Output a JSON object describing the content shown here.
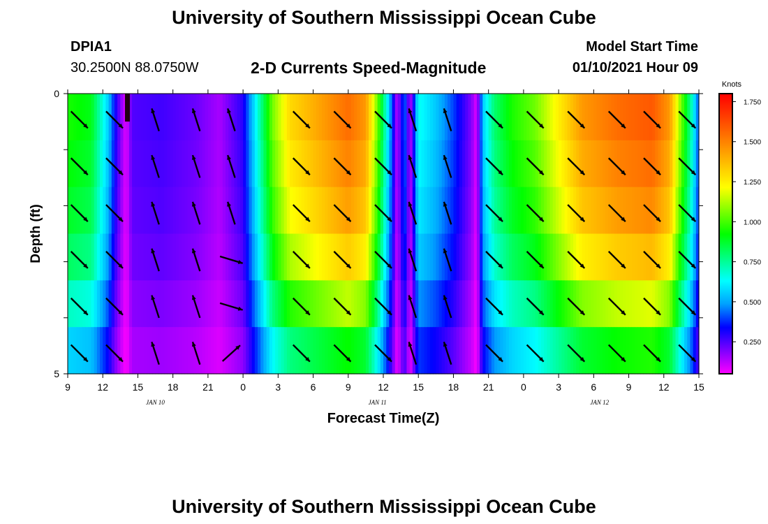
{
  "header": {
    "title": "University of Southern Mississippi Ocean Cube",
    "station": "DPIA1",
    "coords": "30.2500N 88.0750W",
    "chart_title": "2-D Currents Speed-Magnitude",
    "model_start_label": "Model Start Time",
    "model_start_value": "01/10/2021 Hour 09"
  },
  "footer": {
    "title": "University of Southern Mississippi Ocean Cube"
  },
  "chart_data": {
    "type": "heatmap",
    "title": "2-D Currents Speed-Magnitude",
    "xlabel": "Forecast Time(Z)",
    "ylabel": "Depth (ft)",
    "x_range_hours": [
      0,
      54
    ],
    "y_range": [
      0,
      5
    ],
    "x_tick_labels": [
      "9",
      "12",
      "15",
      "18",
      "21",
      "0",
      "3",
      "6",
      "9",
      "12",
      "15",
      "18",
      "21",
      "0",
      "3",
      "6",
      "9",
      "12",
      "15"
    ],
    "y_tick_labels": [
      "0",
      "5"
    ],
    "date_labels": [
      {
        "text": "JAN 10",
        "hour": 7.5
      },
      {
        "text": "JAN 11",
        "hour": 26.5
      },
      {
        "text": "JAN 12",
        "hour": 45.5
      }
    ],
    "colorbar": {
      "label": "Knots",
      "min": 0.05,
      "max": 1.8,
      "ticks": [
        "0.250",
        "0.500",
        "0.750",
        "1.000",
        "1.250",
        "1.500",
        "1.750"
      ],
      "tick_values": [
        0.25,
        0.5,
        0.75,
        1.0,
        1.25,
        1.5,
        1.75
      ],
      "colors": [
        "#ff00ff",
        "#8000ff",
        "#0000ff",
        "#00a0ff",
        "#00ffff",
        "#00ff80",
        "#00ff00",
        "#80ff00",
        "#ffff00",
        "#ffc000",
        "#ff8000",
        "#ff4000",
        "#ff0000"
      ]
    },
    "speed_profile_knots": [
      {
        "h": 0,
        "v": 0.95
      },
      {
        "h": 2,
        "v": 0.9
      },
      {
        "h": 3.5,
        "v": 0.55
      },
      {
        "h": 4,
        "v": 0.35
      },
      {
        "h": 4.5,
        "v": 0.2
      },
      {
        "h": 5,
        "v": 0.08
      },
      {
        "h": 5.5,
        "v": 0.25
      },
      {
        "h": 8,
        "v": 0.27
      },
      {
        "h": 11,
        "v": 0.22
      },
      {
        "h": 13,
        "v": 0.15
      },
      {
        "h": 15,
        "v": 0.3
      },
      {
        "h": 16.5,
        "v": 0.75
      },
      {
        "h": 17.5,
        "v": 1.05
      },
      {
        "h": 19,
        "v": 1.3
      },
      {
        "h": 21,
        "v": 1.4
      },
      {
        "h": 24,
        "v": 1.55
      },
      {
        "h": 25.5,
        "v": 1.45
      },
      {
        "h": 26.5,
        "v": 1.05
      },
      {
        "h": 27.5,
        "v": 0.55
      },
      {
        "h": 28.2,
        "v": 0.12
      },
      {
        "h": 28.8,
        "v": 0.45
      },
      {
        "h": 29.3,
        "v": 0.12
      },
      {
        "h": 30,
        "v": 0.65
      },
      {
        "h": 31.5,
        "v": 0.55
      },
      {
        "h": 33,
        "v": 0.4
      },
      {
        "h": 34.5,
        "v": 0.2
      },
      {
        "h": 35,
        "v": 0.08
      },
      {
        "h": 35.5,
        "v": 0.55
      },
      {
        "h": 36.5,
        "v": 0.8
      },
      {
        "h": 38,
        "v": 0.95
      },
      {
        "h": 40,
        "v": 1.05
      },
      {
        "h": 42,
        "v": 1.25
      },
      {
        "h": 44,
        "v": 1.45
      },
      {
        "h": 47,
        "v": 1.55
      },
      {
        "h": 50,
        "v": 1.6
      },
      {
        "h": 51.5,
        "v": 1.45
      },
      {
        "h": 52.5,
        "v": 1.05
      },
      {
        "h": 53.3,
        "v": 0.75
      },
      {
        "h": 54,
        "v": 0.4
      }
    ],
    "depth_factors": [
      1.0,
      0.97,
      0.93,
      0.86,
      0.74,
      0.6
    ],
    "vector_grid": {
      "hours": [
        1,
        4,
        7.5,
        11,
        14,
        20,
        23.5,
        27,
        29.5,
        32.5,
        36.5,
        40,
        43.5,
        47,
        50,
        53
      ],
      "depth_rows": 6
    },
    "flow_direction_note": "vectors drawn from hourly current direction samples"
  }
}
